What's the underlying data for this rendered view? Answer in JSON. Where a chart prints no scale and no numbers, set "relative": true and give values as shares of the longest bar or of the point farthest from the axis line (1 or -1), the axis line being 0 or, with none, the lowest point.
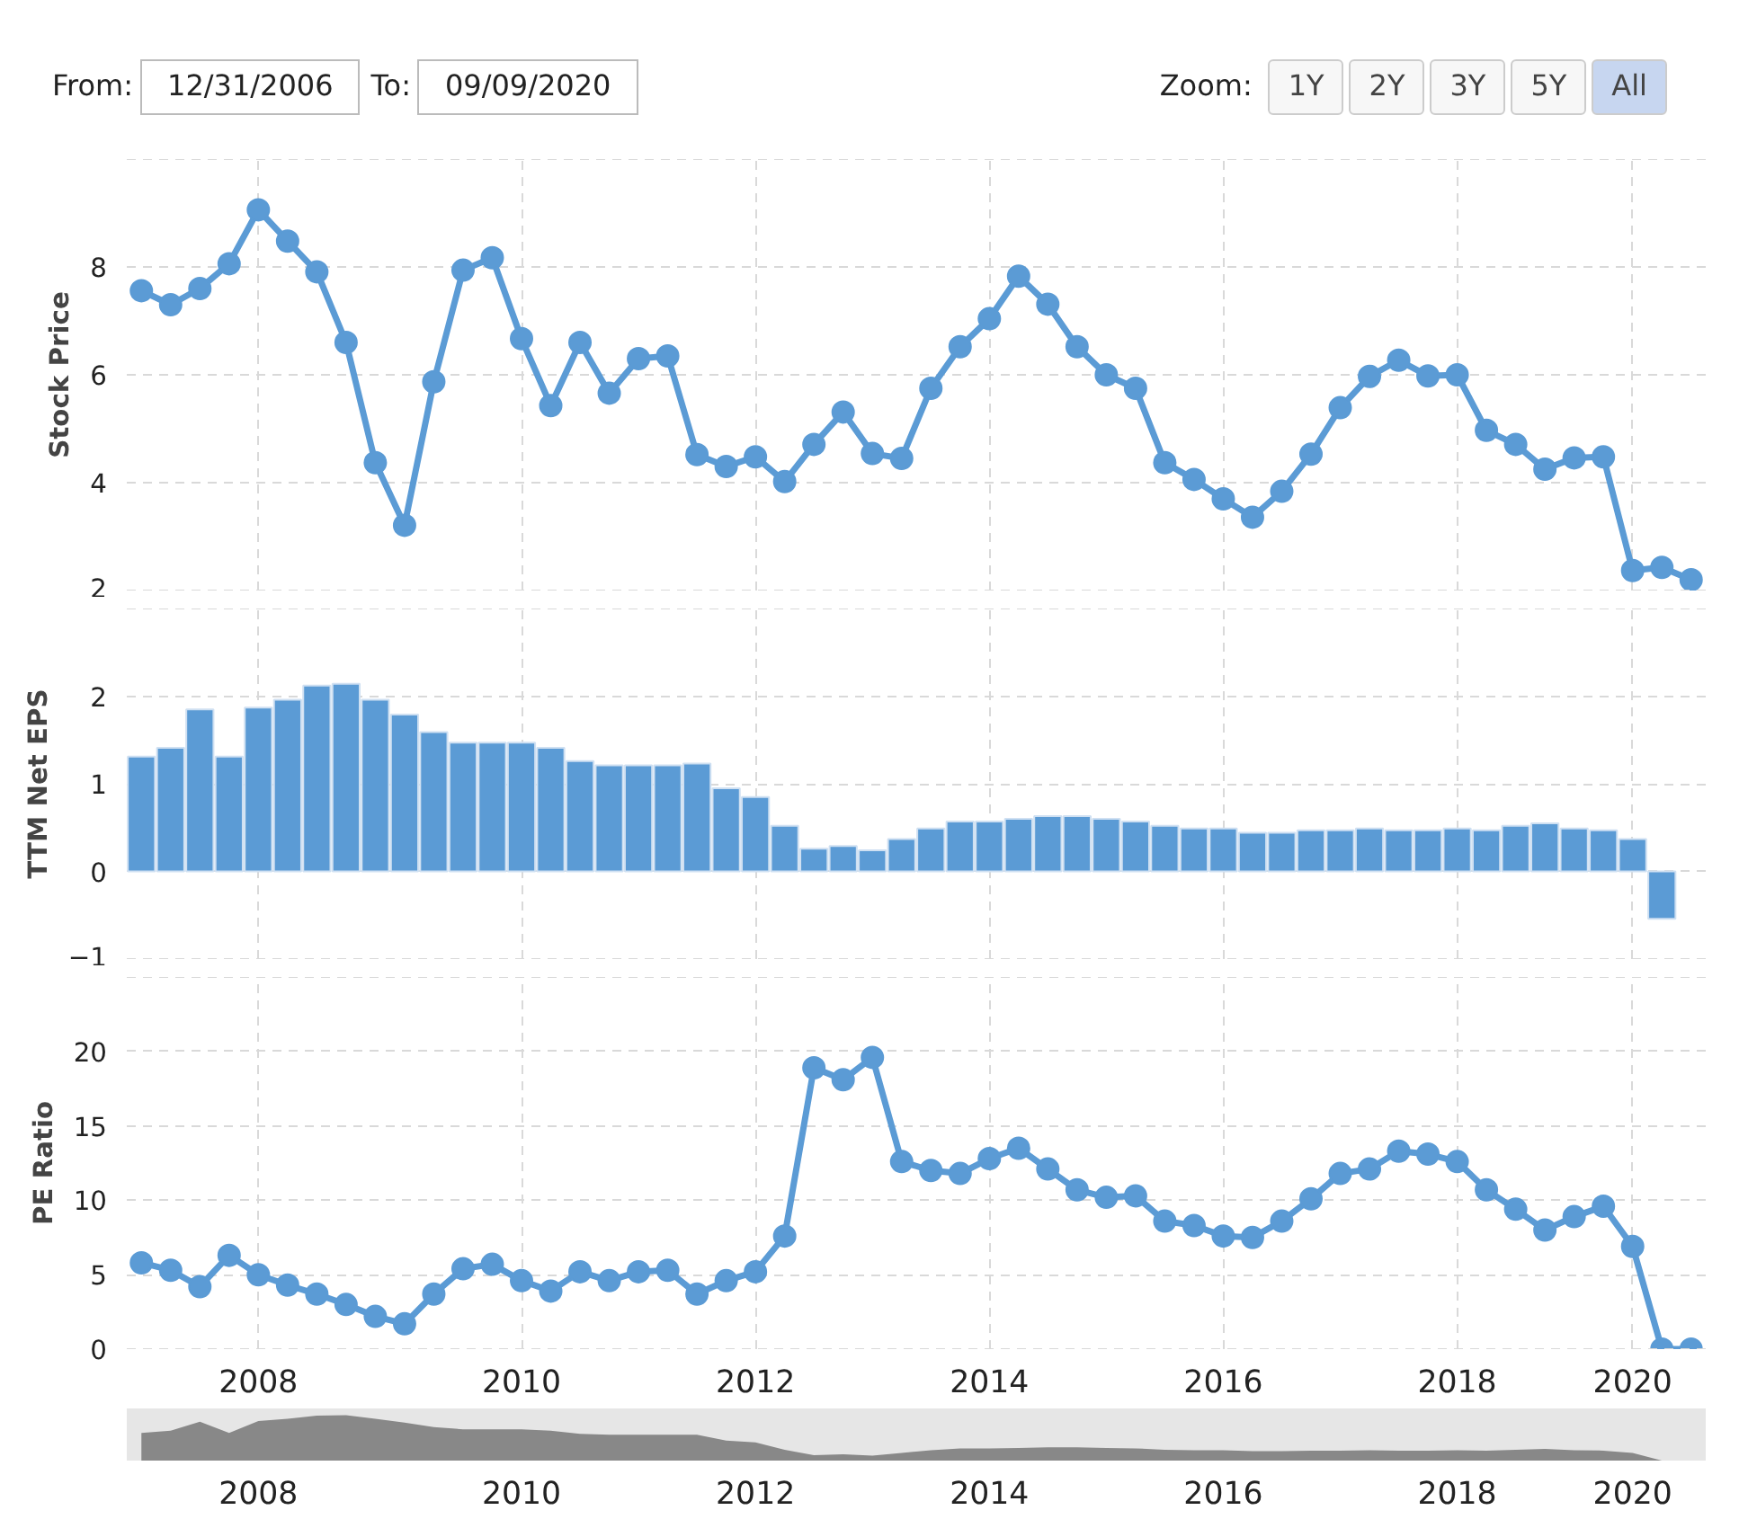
{
  "chart_data": [
    {
      "type": "line",
      "ylabel": "Stock Price",
      "color": "#5b9bd5",
      "marker": "circle",
      "line_style": "solid",
      "grid": true,
      "tick_labels": "y",
      "annotations": [
        "From:",
        "12/31/2006",
        "To:",
        "09/09/2020",
        "Zoom:",
        "1Y",
        "2Y",
        "3Y",
        "5Y",
        "All"
      ],
      "categories": [
        null,
        null,
        null,
        null,
        "2008",
        null,
        null,
        null,
        null,
        null,
        null,
        null,
        null,
        "2010",
        null,
        null,
        null,
        null,
        null,
        null,
        null,
        "2012",
        null,
        null,
        null,
        null,
        null,
        null,
        null,
        "2014",
        null,
        null,
        null,
        null,
        null,
        null,
        null,
        "2016",
        null,
        null,
        null,
        null,
        null,
        null,
        null,
        "2018",
        null,
        null,
        null,
        null,
        null,
        "2020",
        null,
        null
      ],
      "values": [
        7.56,
        7.3,
        7.6,
        8.06,
        9.06,
        8.48,
        7.91,
        6.6,
        4.37,
        3.21,
        5.87,
        7.94,
        8.17,
        6.67,
        5.43,
        6.6,
        5.66,
        6.3,
        6.35,
        4.52,
        4.3,
        4.48,
        4.02,
        4.71,
        5.31,
        4.54,
        4.45,
        5.75,
        6.52,
        7.04,
        7.83,
        7.31,
        6.52,
        6.0,
        5.75,
        4.37,
        4.06,
        3.7,
        3.36,
        3.84,
        4.53,
        5.39,
        5.97,
        6.27,
        5.98,
        6.0,
        4.97,
        4.71,
        4.25,
        4.46,
        4.48,
        2.37,
        2.43,
        2.2
      ],
      "ylim": [
        2,
        10
      ],
      "yticks": [
        2,
        4,
        6,
        8,
        {
          "value": 10,
          "label": null
        }
      ]
    },
    {
      "type": "bar",
      "ylabel": "TTM Net EPS",
      "color": "#5b9bd5",
      "grid": true,
      "tick_labels": "y",
      "categories": [
        null,
        null,
        null,
        null,
        "2008",
        null,
        null,
        null,
        null,
        null,
        null,
        null,
        null,
        "2010",
        null,
        null,
        null,
        null,
        null,
        null,
        null,
        "2012",
        null,
        null,
        null,
        null,
        null,
        null,
        null,
        "2014",
        null,
        null,
        null,
        null,
        null,
        null,
        null,
        "2016",
        null,
        null,
        null,
        null,
        null,
        null,
        null,
        "2018",
        null,
        null,
        null,
        null,
        null,
        "2020",
        null,
        null
      ],
      "values": [
        1.31,
        1.41,
        1.85,
        1.31,
        1.87,
        1.96,
        2.12,
        2.14,
        1.96,
        1.79,
        1.59,
        1.47,
        1.47,
        1.47,
        1.41,
        1.26,
        1.21,
        1.21,
        1.21,
        1.23,
        0.95,
        0.85,
        0.52,
        0.26,
        0.29,
        0.24,
        0.37,
        0.49,
        0.57,
        0.57,
        0.6,
        0.63,
        0.63,
        0.6,
        0.57,
        0.52,
        0.49,
        0.49,
        0.44,
        0.44,
        0.47,
        0.47,
        0.49,
        0.47,
        0.47,
        0.49,
        0.47,
        0.52,
        0.55,
        0.49,
        0.47,
        0.37,
        -0.54,
        null
      ],
      "ylim": [
        -1,
        3
      ],
      "yticks": [
        -1,
        0,
        1,
        2,
        {
          "value": 3,
          "label": null
        }
      ]
    },
    {
      "type": "line",
      "ylabel": "PE Ratio",
      "color": "#5b9bd5",
      "marker": "circle",
      "line_style": "solid",
      "grid": true,
      "categories": [
        null,
        null,
        null,
        null,
        "2008",
        null,
        null,
        null,
        null,
        null,
        null,
        null,
        null,
        "2010",
        null,
        null,
        null,
        null,
        null,
        null,
        null,
        "2012",
        null,
        null,
        null,
        null,
        null,
        null,
        null,
        "2014",
        null,
        null,
        null,
        null,
        null,
        null,
        null,
        "2016",
        null,
        null,
        null,
        null,
        null,
        null,
        null,
        "2018",
        null,
        null,
        null,
        null,
        null,
        "2020",
        null,
        null
      ],
      "values": [
        5.8,
        5.3,
        4.2,
        6.3,
        5.0,
        4.3,
        3.7,
        3.0,
        2.2,
        1.7,
        3.7,
        5.4,
        5.7,
        4.6,
        3.9,
        5.2,
        4.6,
        5.2,
        5.3,
        3.7,
        4.6,
        5.2,
        7.6,
        18.9,
        18.1,
        19.6,
        12.6,
        12.0,
        11.8,
        12.8,
        13.5,
        12.1,
        10.7,
        10.2,
        10.3,
        8.6,
        8.3,
        7.6,
        7.5,
        8.6,
        10.1,
        11.8,
        12.1,
        13.3,
        13.1,
        12.6,
        10.7,
        9.4,
        8.0,
        8.9,
        9.6,
        6.9,
        0,
        0
      ],
      "ylim": [
        0,
        25
      ],
      "yticks": [
        0,
        5,
        10,
        15,
        20,
        {
          "value": 25,
          "label": null
        }
      ]
    },
    {
      "type": "area",
      "relative": true,
      "color": "#888888",
      "tick_labels": "x",
      "categories": [
        null,
        null,
        null,
        null,
        "2008",
        null,
        null,
        null,
        null,
        null,
        null,
        null,
        null,
        "2010",
        null,
        null,
        null,
        null,
        null,
        null,
        null,
        "2012",
        null,
        null,
        null,
        null,
        null,
        null,
        null,
        "2014",
        null,
        null,
        null,
        null,
        null,
        null,
        null,
        "2016",
        null,
        null,
        null,
        null,
        null,
        null,
        null,
        "2018",
        null,
        null,
        null,
        null,
        null,
        "2020",
        null,
        null
      ],
      "values": [
        0.61,
        0.66,
        0.86,
        0.61,
        0.87,
        0.92,
        0.99,
        1,
        0.92,
        0.84,
        0.74,
        0.69,
        0.69,
        0.69,
        0.66,
        0.59,
        0.57,
        0.57,
        0.57,
        0.57,
        0.44,
        0.4,
        0.24,
        0.12,
        0.14,
        0.11,
        0.17,
        0.23,
        0.27,
        0.27,
        0.28,
        0.29,
        0.29,
        0.28,
        0.27,
        0.24,
        0.23,
        0.23,
        0.21,
        0.21,
        0.22,
        0.22,
        0.23,
        0.22,
        0.22,
        0.23,
        0.22,
        0.24,
        0.26,
        0.23,
        0.22,
        0.17,
        0,
        null
      ]
    }
  ]
}
